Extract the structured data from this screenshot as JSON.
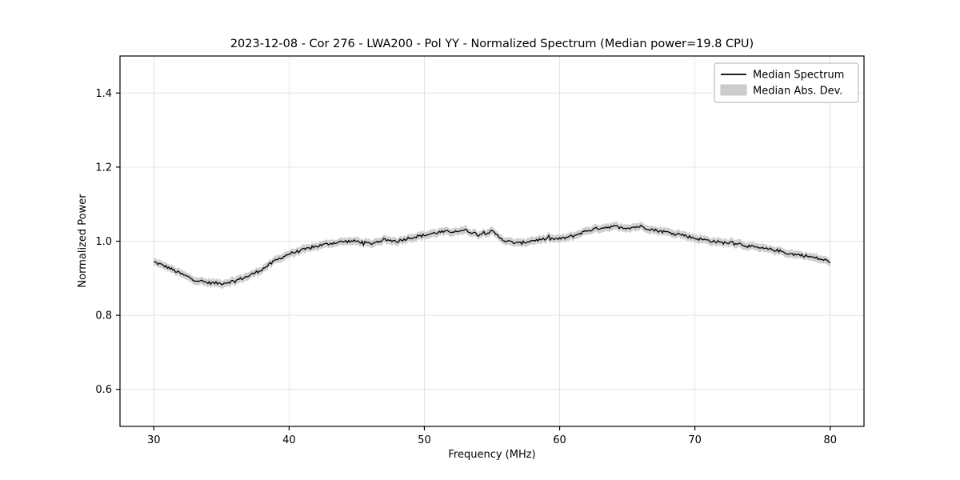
{
  "figure": {
    "title": "2023-12-08 - Cor 276 - LWA200 - Pol YY - Normalized Spectrum (Median power=19.8 CPU)"
  },
  "chart_data": {
    "type": "line",
    "title": "2023-12-08 - Cor 276 - LWA200 - Pol YY - Normalized Spectrum (Median power=19.8 CPU)",
    "xlabel": "Frequency (MHz)",
    "ylabel": "Normalized Power",
    "xlim": [
      27.5,
      82.5
    ],
    "ylim": [
      0.5,
      1.5
    ],
    "xticks": [
      30,
      40,
      50,
      60,
      70,
      80
    ],
    "yticks": [
      0.6,
      0.8,
      1.0,
      1.2,
      1.4
    ],
    "grid": true,
    "grid_color": "#dddddd",
    "legend": {
      "position": "upper right",
      "entries": [
        {
          "label": "Median Spectrum",
          "type": "line",
          "color": "#000000"
        },
        {
          "label": "Median Abs. Dev.",
          "type": "patch",
          "color": "#cccccc"
        }
      ]
    },
    "series": [
      {
        "name": "Median Spectrum",
        "type": "line",
        "color": "#000000",
        "x": [
          30,
          31,
          32,
          33,
          34,
          35,
          36,
          37,
          38,
          39,
          40,
          41,
          42,
          43,
          44,
          45,
          46,
          47,
          48,
          49,
          50,
          51,
          52,
          53,
          54,
          55,
          56,
          57,
          58,
          59,
          60,
          61,
          62,
          63,
          64,
          65,
          66,
          67,
          68,
          69,
          70,
          71,
          72,
          73,
          74,
          75,
          76,
          77,
          78,
          79,
          80
        ],
        "y": [
          0.944,
          0.93,
          0.912,
          0.896,
          0.888,
          0.886,
          0.893,
          0.906,
          0.924,
          0.948,
          0.966,
          0.976,
          0.986,
          0.994,
          0.999,
          1.0,
          0.993,
          1.004,
          1.0,
          1.01,
          1.016,
          1.024,
          1.026,
          1.03,
          1.018,
          1.026,
          1.0,
          0.994,
          1.002,
          1.006,
          1.006,
          1.014,
          1.028,
          1.036,
          1.04,
          1.036,
          1.04,
          1.03,
          1.024,
          1.018,
          1.008,
          1.002,
          0.996,
          0.996,
          0.986,
          0.98,
          0.976,
          0.966,
          0.962,
          0.954,
          0.945
        ]
      },
      {
        "name": "Median Abs. Dev.",
        "type": "band",
        "color": "#c8c8c8",
        "half_width": 0.009
      }
    ],
    "noise_amplitude": 0.004
  }
}
